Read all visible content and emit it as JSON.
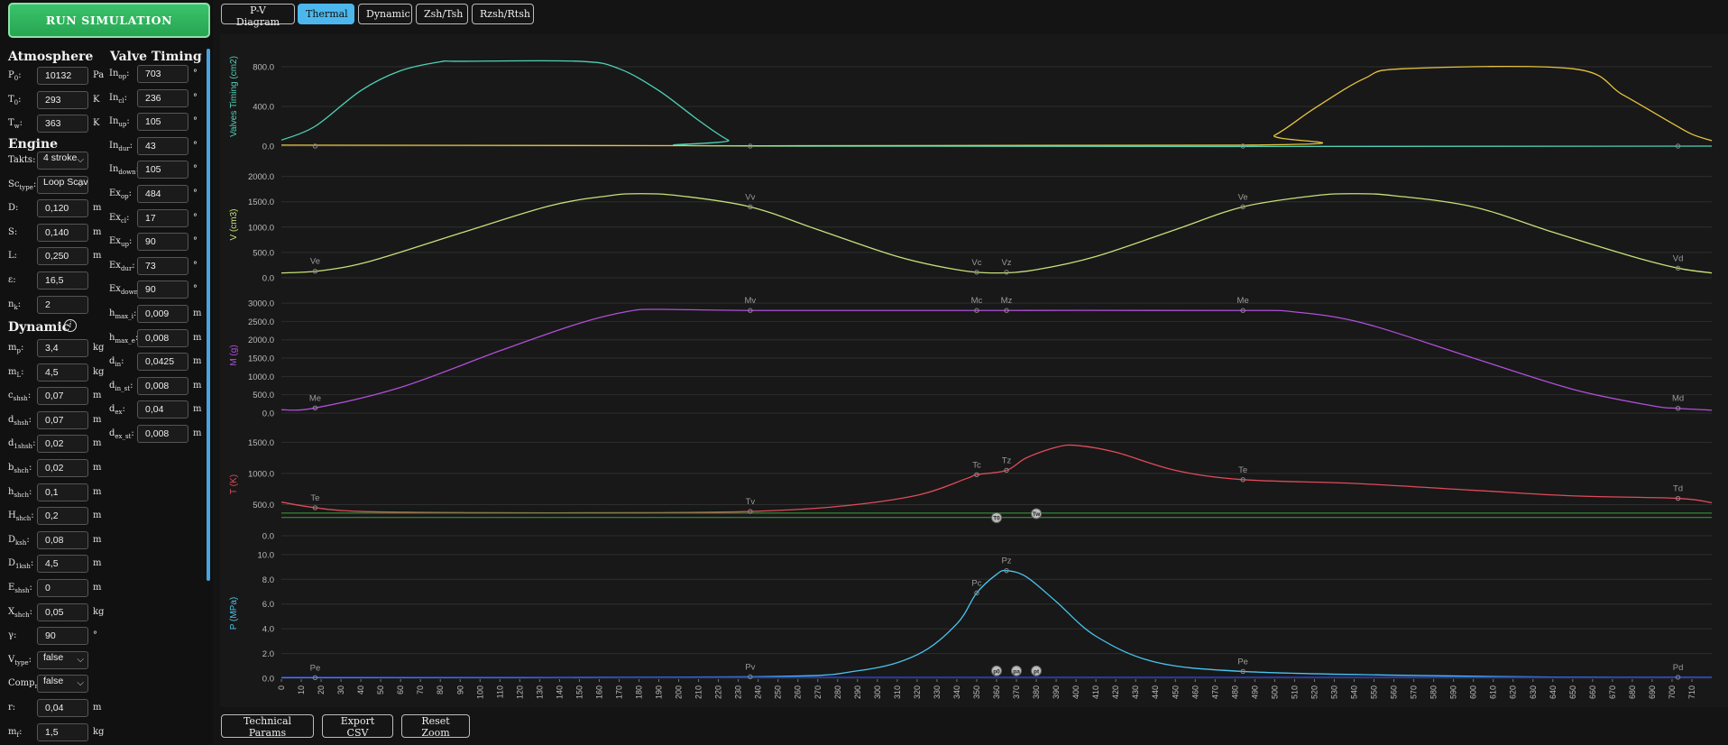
{
  "run_label": "RUN SIMULATION",
  "tabs": [
    {
      "label": "P-V Diagram",
      "active": false
    },
    {
      "label": "Thermal",
      "active": true
    },
    {
      "label": "Dynamic",
      "active": false
    },
    {
      "label": "Zsh/Tsh",
      "active": false
    },
    {
      "label": "Rzsh/Rtsh",
      "active": false
    }
  ],
  "bottom_buttons": [
    "Technical Params",
    "Export CSV",
    "Reset Zoom"
  ],
  "sections": {
    "atmosphere": "Atmosphere",
    "valve_timing": "Valve Timing",
    "engine": "Engine",
    "dynamic": "Dynamic"
  },
  "atmosphere": [
    {
      "sym": "P",
      "sub": "0",
      "value": "10132",
      "unit": "Pa"
    },
    {
      "sym": "T",
      "sub": "0",
      "value": "293",
      "unit": "K"
    },
    {
      "sym": "T",
      "sub": "w",
      "value": "363",
      "unit": "K"
    }
  ],
  "engine": [
    {
      "sym": "Takts",
      "sub": "",
      "value": "4 stroke",
      "select": true
    },
    {
      "sym": "Sc",
      "sub": "type",
      "value": "Loop Scav",
      "select": true
    },
    {
      "sym": "D",
      "sub": "",
      "value": "0,120",
      "unit": "m"
    },
    {
      "sym": "S",
      "sub": "",
      "value": "0,140",
      "unit": "m"
    },
    {
      "sym": "L",
      "sub": "",
      "value": "0,250",
      "unit": "m"
    },
    {
      "sym": "ε",
      "sub": "",
      "value": "16,5",
      "unit": ""
    },
    {
      "sym": "n",
      "sub": "k",
      "value": "2",
      "unit": ""
    }
  ],
  "dynamic": [
    {
      "sym": "m",
      "sub": "p",
      "value": "3,4",
      "unit": "kg"
    },
    {
      "sym": "m",
      "sub": "L",
      "value": "4,5",
      "unit": "kg"
    },
    {
      "sym": "c",
      "sub": "shsh",
      "value": "0,07",
      "unit": "m"
    },
    {
      "sym": "d",
      "sub": "shsh",
      "value": "0,07",
      "unit": "m"
    },
    {
      "sym": "d",
      "sub": "1shsh",
      "value": "0,02",
      "unit": "m"
    },
    {
      "sym": "b",
      "sub": "shch",
      "value": "0,02",
      "unit": "m"
    },
    {
      "sym": "h",
      "sub": "shch",
      "value": "0,1",
      "unit": "m"
    },
    {
      "sym": "H",
      "sub": "shch",
      "value": "0,2",
      "unit": "m"
    },
    {
      "sym": "D",
      "sub": "ksh",
      "value": "0,08",
      "unit": "m"
    },
    {
      "sym": "D",
      "sub": "1ksh",
      "value": "4,5",
      "unit": "m"
    },
    {
      "sym": "E",
      "sub": "shsh",
      "value": "0",
      "unit": "m"
    },
    {
      "sym": "X",
      "sub": "shch",
      "value": "0,05",
      "unit": "kg"
    },
    {
      "sym": "γ",
      "sub": "",
      "value": "90",
      "unit": "°"
    },
    {
      "sym": "V",
      "sub": "type",
      "value": "false",
      "select": true
    },
    {
      "sym": "Comp",
      "sub": "r",
      "value": "false",
      "select": true
    },
    {
      "sym": "r",
      "sub": "",
      "value": "0,04",
      "unit": "m"
    },
    {
      "sym": "m",
      "sub": "f",
      "value": "1,5",
      "unit": "kg"
    }
  ],
  "valve_timing": [
    {
      "sym": "In",
      "sub": "op",
      "value": "703",
      "unit": "°"
    },
    {
      "sym": "In",
      "sub": "cl",
      "value": "236",
      "unit": "°"
    },
    {
      "sym": "In",
      "sub": "up",
      "value": "105",
      "unit": "°"
    },
    {
      "sym": "In",
      "sub": "dur",
      "value": "43",
      "unit": "°"
    },
    {
      "sym": "In",
      "sub": "down",
      "value": "105",
      "unit": "°"
    },
    {
      "sym": "Ex",
      "sub": "op",
      "value": "484",
      "unit": "°"
    },
    {
      "sym": "Ex",
      "sub": "cl",
      "value": "17",
      "unit": "°"
    },
    {
      "sym": "Ex",
      "sub": "up",
      "value": "90",
      "unit": "°"
    },
    {
      "sym": "Ex",
      "sub": "dur",
      "value": "73",
      "unit": "°"
    },
    {
      "sym": "Ex",
      "sub": "down",
      "value": "90",
      "unit": "°"
    },
    {
      "sym": "h",
      "sub": "max_i",
      "value": "0,009",
      "unit": "m"
    },
    {
      "sym": "h",
      "sub": "max_e",
      "value": "0,008",
      "unit": "m"
    },
    {
      "sym": "d",
      "sub": "in",
      "value": "0,0425",
      "unit": "m"
    },
    {
      "sym": "d",
      "sub": "in_st",
      "value": "0,008",
      "unit": "m"
    },
    {
      "sym": "d",
      "sub": "ex",
      "value": "0,04",
      "unit": "m"
    },
    {
      "sym": "d",
      "sub": "ex_st",
      "value": "0,008",
      "unit": "m"
    }
  ],
  "colors": {
    "accent_tab": "#4cb7ec",
    "run_button": "#2fb35d",
    "intake_valve": "#4fd1b5",
    "exhaust_valve": "#e6c340",
    "volume": "#c6e07a",
    "mass": "#b04fd8",
    "temperature": "#e04a5a",
    "pressure": "#4ac4ee",
    "wall_temp_line": "#3f9e3f",
    "pressure_base": "#2a44d8"
  },
  "chart_data": {
    "type": "line",
    "x": {
      "label": "",
      "min": 0,
      "max": 720,
      "ticks_step": 10
    },
    "panels": [
      {
        "ylabel": "Valves Timing (cm2)",
        "yticks": [
          "0.0",
          "400.0",
          "800.0"
        ],
        "ylim": [
          0,
          1000
        ],
        "series": [
          {
            "key": "intake",
            "color_key": "intake_valve",
            "points": [
              [
                0,
                60
              ],
              [
                17,
                200
              ],
              [
                40,
                560
              ],
              [
                60,
                760
              ],
              [
                80,
                850
              ],
              [
                90,
                855
              ],
              [
                150,
                855
              ],
              [
                170,
                780
              ],
              [
                190,
                560
              ],
              [
                210,
                260
              ],
              [
                225,
                60
              ],
              [
                236,
                0
              ],
              [
                720,
                0
              ]
            ]
          },
          {
            "key": "exhaust",
            "color_key": "exhaust_valve",
            "points": [
              [
                0,
                10
              ],
              [
                484,
                10
              ],
              [
                500,
                110
              ],
              [
                520,
                380
              ],
              [
                545,
                680
              ],
              [
                565,
                780
              ],
              [
                650,
                780
              ],
              [
                675,
                520
              ],
              [
                700,
                230
              ],
              [
                710,
                120
              ],
              [
                720,
                55
              ]
            ]
          }
        ],
        "markers": [
          {
            "x": 17,
            "y": 0,
            "label": ""
          },
          {
            "x": 236,
            "y": 0,
            "label": ""
          },
          {
            "x": 484,
            "y": 0,
            "label": ""
          },
          {
            "x": 703,
            "y": 0,
            "label": ""
          }
        ]
      },
      {
        "ylabel": "V (cm3)",
        "yticks": [
          "0.0",
          "500.0",
          "1000.0",
          "1500.0",
          "2000.0"
        ],
        "ylim": [
          0,
          2100
        ],
        "series": [
          {
            "key": "volume",
            "color_key": "volume",
            "points": [
              [
                0,
                95
              ],
              [
                20,
                140
              ],
              [
                45,
                330
              ],
              [
                90,
                880
              ],
              [
                135,
                1420
              ],
              [
                165,
                1620
              ],
              [
                180,
                1660
              ],
              [
                200,
                1620
              ],
              [
                236,
                1400
              ],
              [
                270,
                950
              ],
              [
                310,
                420
              ],
              [
                340,
                160
              ],
              [
                360,
                95
              ],
              [
                380,
                160
              ],
              [
                410,
                420
              ],
              [
                450,
                950
              ],
              [
                484,
                1400
              ],
              [
                520,
                1620
              ],
              [
                540,
                1660
              ],
              [
                560,
                1620
              ],
              [
                600,
                1400
              ],
              [
                640,
                900
              ],
              [
                680,
                420
              ],
              [
                703,
                190
              ],
              [
                720,
                95
              ]
            ]
          }
        ],
        "markers": [
          {
            "x": 17,
            "y": 130,
            "label": "Ve"
          },
          {
            "x": 236,
            "y": 1400,
            "label": "Vv"
          },
          {
            "x": 350,
            "y": 110,
            "label": "Vc"
          },
          {
            "x": 365,
            "y": 110,
            "label": "Vz"
          },
          {
            "x": 484,
            "y": 1400,
            "label": "Ve"
          },
          {
            "x": 703,
            "y": 190,
            "label": "Vd"
          }
        ]
      },
      {
        "ylabel": "M (g)",
        "yticks": [
          "0.0",
          "500.0",
          "1000.0",
          "1500.0",
          "2000.0",
          "2500.0",
          "3000.0"
        ],
        "ylim": [
          0,
          3150
        ],
        "series": [
          {
            "key": "mass",
            "color_key": "mass",
            "points": [
              [
                0,
                90
              ],
              [
                17,
                140
              ],
              [
                60,
                700
              ],
              [
                110,
                1700
              ],
              [
                150,
                2450
              ],
              [
                175,
                2780
              ],
              [
                190,
                2830
              ],
              [
                236,
                2800
              ],
              [
                360,
                2800
              ],
              [
                484,
                2800
              ],
              [
                510,
                2760
              ],
              [
                545,
                2450
              ],
              [
                600,
                1500
              ],
              [
                650,
                650
              ],
              [
                690,
                200
              ],
              [
                703,
                130
              ],
              [
                720,
                80
              ]
            ]
          }
        ],
        "markers": [
          {
            "x": 17,
            "y": 140,
            "label": "Me"
          },
          {
            "x": 236,
            "y": 2800,
            "label": "Mv"
          },
          {
            "x": 350,
            "y": 2800,
            "label": "Mc"
          },
          {
            "x": 365,
            "y": 2800,
            "label": "Mz"
          },
          {
            "x": 484,
            "y": 2800,
            "label": "Me"
          },
          {
            "x": 703,
            "y": 130,
            "label": "Md"
          }
        ]
      },
      {
        "ylabel": "T (K)",
        "yticks": [
          "0.0",
          "500.0",
          "1000.0",
          "1500.0"
        ],
        "ylim": [
          0,
          1650
        ],
        "series": [
          {
            "key": "temperature",
            "color_key": "temperature",
            "points": [
              [
                0,
                540
              ],
              [
                17,
                450
              ],
              [
                40,
                390
              ],
              [
                100,
                370
              ],
              [
                180,
                370
              ],
              [
                236,
                390
              ],
              [
                280,
                470
              ],
              [
                320,
                650
              ],
              [
                345,
                920
              ],
              [
                350,
                980
              ],
              [
                365,
                1050
              ],
              [
                375,
                1250
              ],
              [
                390,
                1420
              ],
              [
                400,
                1450
              ],
              [
                420,
                1340
              ],
              [
                450,
                1050
              ],
              [
                484,
                900
              ],
              [
                540,
                840
              ],
              [
                600,
                730
              ],
              [
                650,
                640
              ],
              [
                703,
                600
              ],
              [
                720,
                530
              ]
            ]
          },
          {
            "key": "wall_t0",
            "color_key": "wall_temp_line",
            "points": [
              [
                0,
                293
              ],
              [
                720,
                293
              ]
            ]
          },
          {
            "key": "wall_tw",
            "color_key": "wall_temp_line",
            "points": [
              [
                0,
                363
              ],
              [
                720,
                363
              ]
            ]
          }
        ],
        "markers": [
          {
            "x": 17,
            "y": 450,
            "label": "Te"
          },
          {
            "x": 236,
            "y": 390,
            "label": "Tv"
          },
          {
            "x": 350,
            "y": 980,
            "label": "Tc"
          },
          {
            "x": 365,
            "y": 1050,
            "label": "Tz"
          },
          {
            "x": 484,
            "y": 900,
            "label": "Te"
          },
          {
            "x": 703,
            "y": 600,
            "label": "Td"
          }
        ],
        "badges": [
          {
            "x": 360,
            "y": 290,
            "label": "T0"
          },
          {
            "x": 380,
            "y": 355,
            "label": "Tw"
          }
        ]
      },
      {
        "ylabel": "P (MPa)",
        "yticks": [
          "0.0",
          "2.0",
          "4.0",
          "6.0",
          "8.0",
          "10.0"
        ],
        "ylim": [
          0,
          10.5
        ],
        "series": [
          {
            "key": "pressure",
            "color_key": "pressure",
            "points": [
              [
                0,
                0.05
              ],
              [
                236,
                0.12
              ],
              [
                290,
                0.6
              ],
              [
                320,
                1.9
              ],
              [
                340,
                4.4
              ],
              [
                350,
                6.9
              ],
              [
                360,
                8.4
              ],
              [
                365,
                8.7
              ],
              [
                375,
                8.2
              ],
              [
                390,
                6.2
              ],
              [
                410,
                3.4
              ],
              [
                440,
                1.3
              ],
              [
                484,
                0.55
              ],
              [
                560,
                0.25
              ],
              [
                640,
                0.1
              ],
              [
                720,
                0.08
              ]
            ]
          },
          {
            "key": "pressure_base",
            "color_key": "pressure_base",
            "points": [
              [
                0,
                0.08
              ],
              [
                720,
                0.08
              ]
            ]
          }
        ],
        "markers": [
          {
            "x": 17,
            "y": 0.05,
            "label": "Pe"
          },
          {
            "x": 236,
            "y": 0.12,
            "label": "Pv"
          },
          {
            "x": 350,
            "y": 6.9,
            "label": "Pc"
          },
          {
            "x": 365,
            "y": 8.7,
            "label": "Pz"
          },
          {
            "x": 484,
            "y": 0.55,
            "label": "Pe"
          },
          {
            "x": 703,
            "y": 0.08,
            "label": "Pd"
          }
        ],
        "badges": [
          {
            "x": 360,
            "y": 0.6,
            "label": "p0"
          },
          {
            "x": 370,
            "y": 0.6,
            "label": "pa"
          },
          {
            "x": 380,
            "y": 0.6,
            "label": "pt"
          }
        ]
      }
    ]
  }
}
